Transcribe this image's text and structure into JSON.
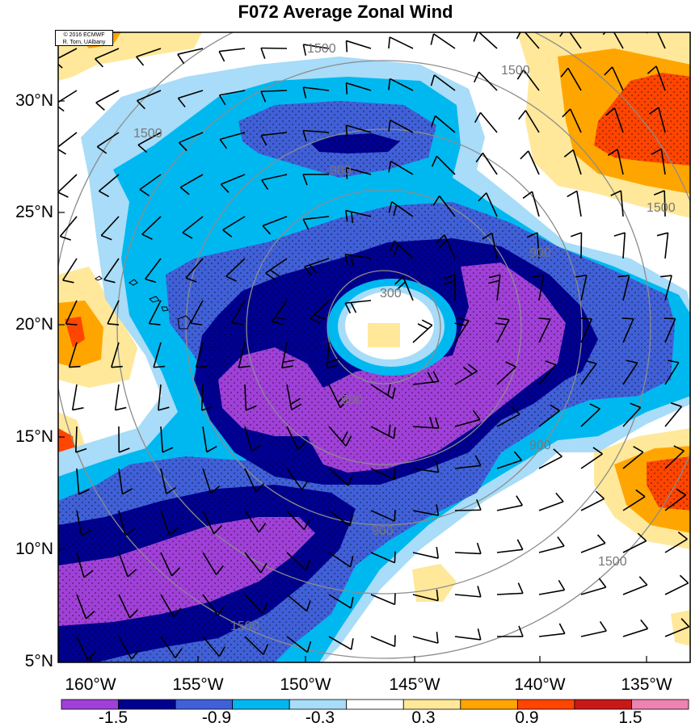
{
  "title": "F072 Average Zonal Wind",
  "credit": {
    "line1": "© 2016 ECMWF",
    "line2": "R. Torn, UAlbany"
  },
  "axes": {
    "lat_labels": [
      "30°N",
      "25°N",
      "20°N",
      "15°N",
      "10°N",
      "5°N"
    ],
    "lon_labels": [
      "160°W",
      "155°W",
      "150°W",
      "145°W",
      "140°W",
      "135°W"
    ]
  },
  "colorbar": {
    "colors": [
      "#a040d8",
      "#000090",
      "#4060d8",
      "#00b8f0",
      "#a8dcf8",
      "#ffffff",
      "#ffe89a",
      "#ffa500",
      "#ff4500",
      "#c81818",
      "#ee82b0"
    ],
    "tick_labels": [
      "-1.5",
      "-0.9",
      "-0.3",
      "0.3",
      "0.9",
      "1.5"
    ]
  },
  "contours": {
    "labels": [
      "900",
      "900",
      "900",
      "900",
      "900",
      "1500",
      "1500",
      "1500",
      "1500",
      "1500",
      "1500",
      "300"
    ]
  }
}
